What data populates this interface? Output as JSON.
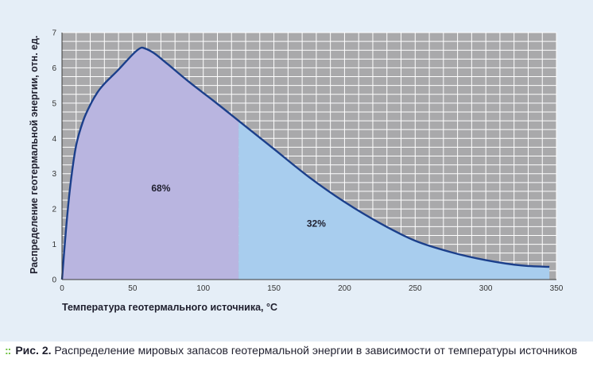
{
  "chart_data": {
    "type": "area",
    "xlabel": "Температура геотермального источника, °C",
    "ylabel": "Распределение геотермальной энергии, отн. ед.",
    "xlim": [
      0,
      350
    ],
    "ylim": [
      0,
      7
    ],
    "x_ticks": [
      0,
      50,
      100,
      150,
      200,
      250,
      300,
      350
    ],
    "y_ticks": [
      0,
      1,
      2,
      3,
      4,
      5,
      6,
      7
    ],
    "grid": true,
    "x": [
      0,
      3,
      6,
      10,
      15,
      20,
      25,
      30,
      40,
      50,
      55,
      58,
      65,
      75,
      90,
      110,
      125,
      150,
      175,
      200,
      225,
      250,
      275,
      300,
      325,
      345
    ],
    "y": [
      0,
      1.5,
      2.7,
      3.8,
      4.5,
      4.95,
      5.3,
      5.55,
      5.95,
      6.38,
      6.55,
      6.56,
      6.42,
      6.1,
      5.6,
      4.98,
      4.5,
      3.7,
      2.9,
      2.2,
      1.6,
      1.1,
      0.78,
      0.55,
      0.4,
      0.36
    ],
    "split_x": 125,
    "regions": [
      {
        "label": "68%",
        "color": "#b9b5e0",
        "label_x": 70,
        "label_y": 2.5
      },
      {
        "label": "32%",
        "color": "#a8cdee",
        "label_x": 180,
        "label_y": 1.5
      }
    ],
    "line_color": "#1b3f8b"
  },
  "caption": {
    "marker": "::",
    "lead": "Рис. 2.",
    "text": "Распределение мировых запасов геотермальной энергии в зависимости от температуры источников"
  }
}
